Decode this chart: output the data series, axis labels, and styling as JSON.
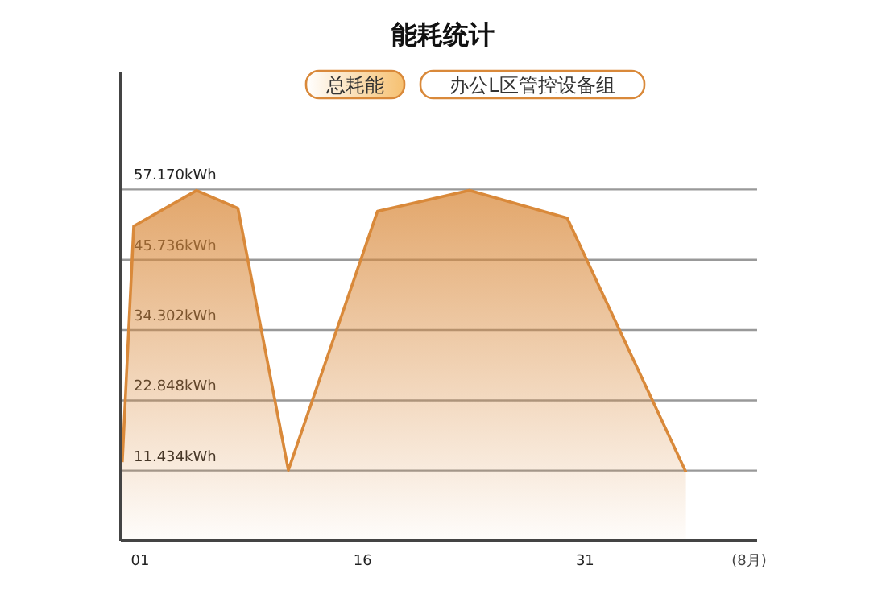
{
  "chart_data": {
    "type": "area",
    "title": "能耗统计",
    "xlabel": "(8月)",
    "x": [
      -0.2,
      0.57,
      4.8,
      7.6,
      11.0,
      17.0,
      23.2,
      29.8,
      37.8
    ],
    "series": [
      {
        "name": "总耗能",
        "color": "#d9893a",
        "values": [
          12.8,
          51.2,
          57.0,
          54.1,
          11.5,
          53.6,
          57.0,
          52.5,
          11.2
        ]
      }
    ],
    "annotations": [
      "办公L区管控设备组"
    ],
    "xlim": [
      -0.3,
      42.6
    ],
    "ylim": [
      0,
      76.2
    ],
    "xticks": [
      {
        "value": 1,
        "label": "01"
      },
      {
        "value": 16,
        "label": "16"
      },
      {
        "value": 31,
        "label": "31"
      }
    ],
    "yticks": [
      {
        "value": 11.434,
        "label": "11.434kWh"
      },
      {
        "value": 22.848,
        "label": "22.848kWh"
      },
      {
        "value": 34.302,
        "label": "34.302kWh"
      },
      {
        "value": 45.736,
        "label": "45.736kWh"
      },
      {
        "value": 57.17,
        "label": "57.170kWh"
      }
    ],
    "grid": "y",
    "legend": "top"
  }
}
